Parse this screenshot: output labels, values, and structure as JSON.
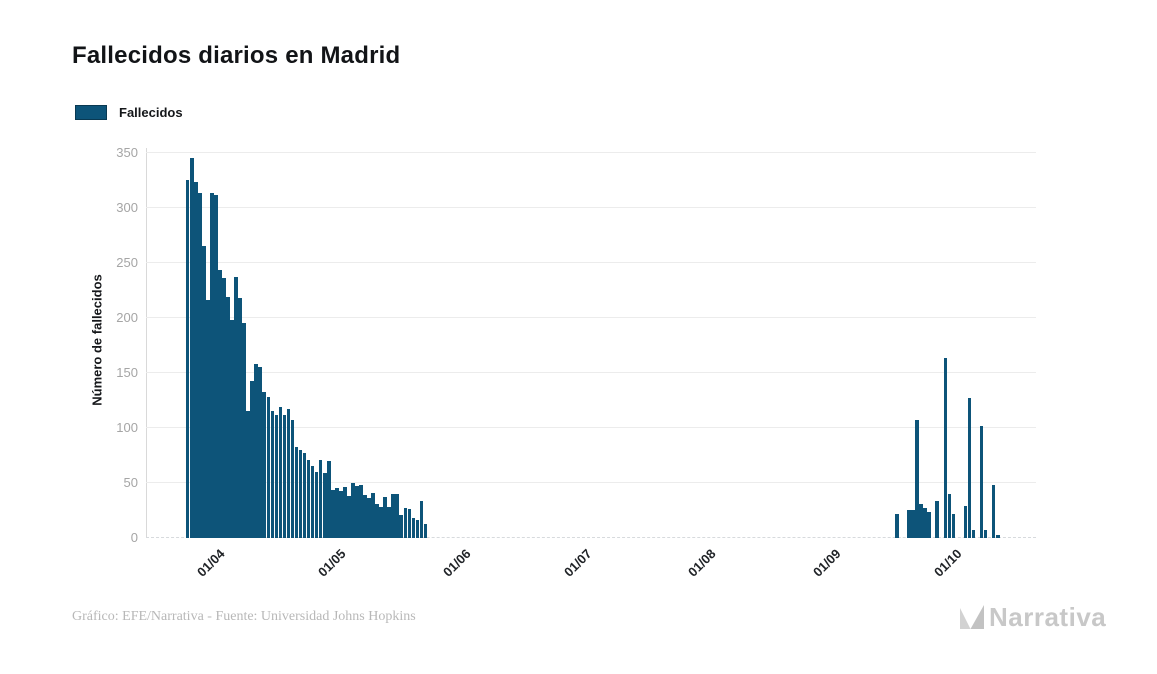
{
  "header": {
    "title": "Fallecidos diarios en Madrid"
  },
  "legend": {
    "items": [
      {
        "label": "Fallecidos",
        "color": "#0d5479",
        "border_color": "#093952"
      }
    ]
  },
  "footer": {
    "credit": "Gráfico: EFE/Narrativa - Fuente: Universidad Johns Hopkins",
    "brand": "Narrativa"
  },
  "colors": {
    "bar": "#0d5479",
    "gridline": "#ececec",
    "axis_line": "#d9d9d9",
    "y_tick_text": "#a5a5a5",
    "x_tick_text": "#1f2226",
    "footer_text": "#b8b8b8",
    "brand_gray": "#c8c8c8"
  },
  "chart_data": {
    "type": "bar",
    "title": "Fallecidos diarios en Madrid",
    "ylabel": "Número de fallecidos",
    "xlabel": "",
    "ylim": [
      0,
      350
    ],
    "yticks": [
      0,
      50,
      100,
      150,
      200,
      250,
      300,
      350
    ],
    "grid": "horizontal",
    "legend_position": "top-left",
    "legend_entries": [
      "Fallecidos"
    ],
    "bar_color": "#0d5479",
    "xticks": [
      {
        "label": "01/04",
        "day_index": 4
      },
      {
        "label": "01/05",
        "day_index": 34
      },
      {
        "label": "01/06",
        "day_index": 65
      },
      {
        "label": "01/07",
        "day_index": 95
      },
      {
        "label": "01/08",
        "day_index": 126
      },
      {
        "label": "01/09",
        "day_index": 157
      },
      {
        "label": "01/10",
        "day_index": 187
      }
    ],
    "point_format": [
      "day_index",
      "date_dd/mm",
      "value"
    ],
    "points": [
      [
        0,
        "28/03",
        325
      ],
      [
        1,
        "29/03",
        345
      ],
      [
        2,
        "30/03",
        323
      ],
      [
        3,
        "31/03",
        313
      ],
      [
        4,
        "01/04",
        265
      ],
      [
        5,
        "02/04",
        216
      ],
      [
        6,
        "03/04",
        313
      ],
      [
        7,
        "04/04",
        311
      ],
      [
        8,
        "05/04",
        243
      ],
      [
        9,
        "06/04",
        236
      ],
      [
        10,
        "07/04",
        219
      ],
      [
        11,
        "08/04",
        198
      ],
      [
        12,
        "09/04",
        237
      ],
      [
        13,
        "10/04",
        218
      ],
      [
        14,
        "11/04",
        195
      ],
      [
        15,
        "12/04",
        115
      ],
      [
        16,
        "13/04",
        143
      ],
      [
        17,
        "14/04",
        158
      ],
      [
        18,
        "15/04",
        155
      ],
      [
        19,
        "16/04",
        133
      ],
      [
        20,
        "17/04",
        128
      ],
      [
        21,
        "18/04",
        115
      ],
      [
        22,
        "19/04",
        112
      ],
      [
        23,
        "20/04",
        119
      ],
      [
        24,
        "21/04",
        112
      ],
      [
        25,
        "22/04",
        117
      ],
      [
        26,
        "23/04",
        107
      ],
      [
        27,
        "24/04",
        83
      ],
      [
        28,
        "25/04",
        80
      ],
      [
        29,
        "26/04",
        77
      ],
      [
        30,
        "27/04",
        71
      ],
      [
        31,
        "28/04",
        65
      ],
      [
        32,
        "29/04",
        60
      ],
      [
        33,
        "30/04",
        71
      ],
      [
        34,
        "01/05",
        59
      ],
      [
        35,
        "02/05",
        70
      ],
      [
        36,
        "03/05",
        44
      ],
      [
        37,
        "04/05",
        45
      ],
      [
        38,
        "05/05",
        43
      ],
      [
        39,
        "06/05",
        46
      ],
      [
        40,
        "07/05",
        38
      ],
      [
        41,
        "08/05",
        50
      ],
      [
        42,
        "09/05",
        47
      ],
      [
        43,
        "10/05",
        48
      ],
      [
        44,
        "11/05",
        39
      ],
      [
        45,
        "12/05",
        36
      ],
      [
        46,
        "13/05",
        41
      ],
      [
        47,
        "14/05",
        31
      ],
      [
        48,
        "15/05",
        28
      ],
      [
        49,
        "16/05",
        37
      ],
      [
        50,
        "17/05",
        28
      ],
      [
        51,
        "18/05",
        40
      ],
      [
        52,
        "19/05",
        40
      ],
      [
        53,
        "20/05",
        21
      ],
      [
        54,
        "21/05",
        27
      ],
      [
        55,
        "22/05",
        26
      ],
      [
        56,
        "23/05",
        18
      ],
      [
        57,
        "24/05",
        16
      ],
      [
        58,
        "25/05",
        34
      ],
      [
        59,
        "26/05",
        13
      ],
      [
        176,
        "20/09",
        22
      ],
      [
        179,
        "23/09",
        25
      ],
      [
        180,
        "24/09",
        25
      ],
      [
        181,
        "25/09",
        107
      ],
      [
        182,
        "26/09",
        31
      ],
      [
        183,
        "27/09",
        27
      ],
      [
        184,
        "28/09",
        24
      ],
      [
        186,
        "30/09",
        34
      ],
      [
        188,
        "02/10",
        163
      ],
      [
        189,
        "03/10",
        40
      ],
      [
        190,
        "04/10",
        22
      ],
      [
        193,
        "07/10",
        29
      ],
      [
        194,
        "08/10",
        127
      ],
      [
        195,
        "09/10",
        7
      ],
      [
        197,
        "11/10",
        102
      ],
      [
        198,
        "12/10",
        7
      ],
      [
        200,
        "14/10",
        48
      ],
      [
        201,
        "15/10",
        3
      ]
    ]
  }
}
